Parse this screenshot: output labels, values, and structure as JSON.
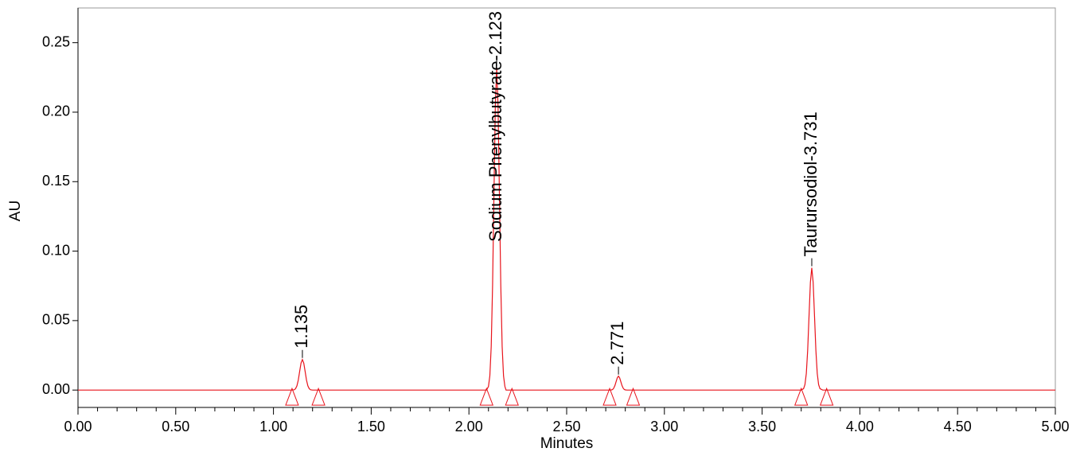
{
  "chart_data": {
    "type": "line",
    "xlabel": "Minutes",
    "ylabel": "AU",
    "xlim": [
      0,
      5
    ],
    "ylim": [
      -0.0125,
      0.275
    ],
    "xticks": [
      {
        "value": 0,
        "label": "0.00"
      },
      {
        "value": 0.5,
        "label": "0.50"
      },
      {
        "value": 1,
        "label": "1.00"
      },
      {
        "value": 1.5,
        "label": "1.50"
      },
      {
        "value": 2,
        "label": "2.00"
      },
      {
        "value": 2.5,
        "label": "2.50"
      },
      {
        "value": 3,
        "label": "3.00"
      },
      {
        "value": 3.5,
        "label": "3.50"
      },
      {
        "value": 4,
        "label": "4.00"
      },
      {
        "value": 4.5,
        "label": "4.50"
      },
      {
        "value": 5,
        "label": "5.00"
      }
    ],
    "xminorticks": [
      0.1,
      0.2,
      0.3,
      0.4,
      0.6,
      0.7,
      0.8,
      0.9,
      1.1,
      1.2,
      1.3,
      1.4,
      1.6,
      1.7,
      1.8,
      1.9,
      2.1,
      2.2,
      2.3,
      2.4,
      2.6,
      2.7,
      2.8,
      2.9,
      3.1,
      3.2,
      3.3,
      3.4,
      3.6,
      3.7,
      3.8,
      3.9,
      4.1,
      4.2,
      4.3,
      4.4,
      4.6,
      4.7,
      4.8,
      4.9
    ],
    "yticks": [
      {
        "value": 0,
        "label": "0.00"
      },
      {
        "value": 0.05,
        "label": "0.05"
      },
      {
        "value": 0.1,
        "label": "0.10"
      },
      {
        "value": 0.15,
        "label": "0.15"
      },
      {
        "value": 0.2,
        "label": "0.20"
      },
      {
        "value": 0.25,
        "label": "0.25"
      }
    ],
    "series": [
      {
        "color": "#e8141c",
        "x": [
          0,
          1.09,
          1.106,
          1.113,
          1.12,
          1.127,
          1.134,
          1.141,
          1.148,
          1.155,
          1.162,
          1.169,
          1.176,
          1.183,
          1.19,
          1.2,
          2.09,
          2.1,
          2.107,
          2.114,
          2.121,
          2.128,
          2.135,
          2.142,
          2.149,
          2.156,
          2.163,
          2.17,
          2.177,
          2.184,
          2.19,
          2.72,
          2.729,
          2.735,
          2.741,
          2.747,
          2.753,
          2.759,
          2.765,
          2.771,
          2.777,
          2.783,
          2.789,
          2.795,
          2.801,
          2.81,
          3.7,
          3.712,
          3.719,
          3.726,
          3.733,
          3.74,
          3.747,
          3.754,
          3.761,
          3.768,
          3.775,
          3.782,
          3.789,
          3.796,
          3.81,
          5
        ],
        "values": [
          0,
          0,
          0.0002,
          0.001,
          0.003,
          0.0072,
          0.0134,
          0.0194,
          0.022,
          0.0194,
          0.0134,
          0.0072,
          0.003,
          0.001,
          0.0002,
          0,
          0,
          0.0026,
          0.0102,
          0.0313,
          0.0754,
          0.1408,
          0.2046,
          0.232,
          0.2046,
          0.1408,
          0.0754,
          0.0313,
          0.0102,
          0.0026,
          0,
          0,
          0.0001,
          0.0004,
          0.0014,
          0.0033,
          0.0061,
          0.0088,
          0.01,
          0.0088,
          0.0061,
          0.0033,
          0.0014,
          0.0004,
          0.0001,
          0,
          0,
          0.001,
          0.0039,
          0.0119,
          0.0286,
          0.0534,
          0.0776,
          0.088,
          0.0776,
          0.0534,
          0.0286,
          0.0119,
          0.0039,
          0.001,
          0,
          0
        ]
      }
    ],
    "integration_marks": [
      1.095,
      1.23,
      2.09,
      2.22,
      2.72,
      2.84,
      3.7,
      3.83
    ],
    "annotations": [
      {
        "text": "1.135",
        "x": 1.148,
        "y": 0.022
      },
      {
        "text": "Sodium Phenylbutyrate-2.123",
        "x": 2.142,
        "y": 0.232
      },
      {
        "text": "2.771",
        "x": 2.765,
        "y": 0.01
      },
      {
        "text": "Taurursodiol-3.731",
        "x": 3.754,
        "y": 0.088
      }
    ]
  }
}
